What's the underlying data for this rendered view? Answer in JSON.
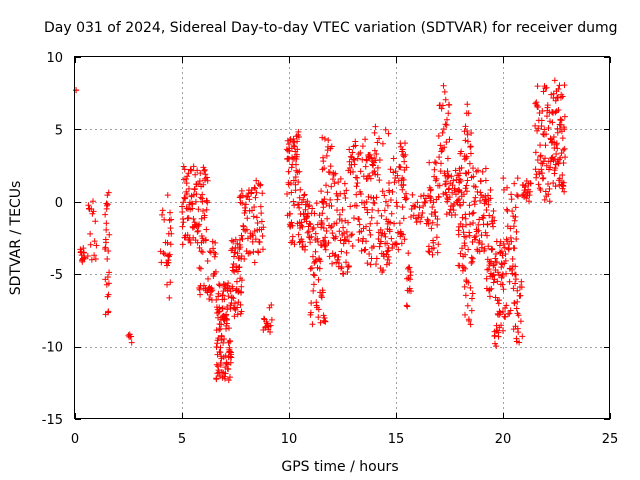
{
  "chart_data": {
    "type": "scatter",
    "title": "Day 031 of 2024, Sidereal Day-to-day VTEC variation (SDTVAR) for receiver dumg",
    "xlabel": "GPS time / hours",
    "ylabel": "SDTVAR / TECUs",
    "xlim": [
      0,
      25
    ],
    "ylim": [
      -15,
      10
    ],
    "xticks": [
      0,
      5,
      10,
      15,
      20,
      25
    ],
    "yticks": [
      -15,
      -10,
      -5,
      0,
      5,
      10
    ],
    "grid": true,
    "marker": "plus",
    "color": "#ff0000",
    "series": [
      {
        "name": "SDTVAR",
        "clusters": [
          {
            "x": [
              0.05,
              0.05
            ],
            "y": [
              7.6,
              7.8
            ],
            "n": 2
          },
          {
            "x": [
              0.25,
              0.45
            ],
            "y": [
              -4.2,
              -3.2
            ],
            "n": 14
          },
          {
            "x": [
              0.6,
              1.0
            ],
            "y": [
              -4.2,
              0.2
            ],
            "n": 16
          },
          {
            "x": [
              1.4,
              1.6
            ],
            "y": [
              -7.8,
              1.2
            ],
            "n": 26
          },
          {
            "x": [
              2.5,
              2.65
            ],
            "y": [
              -9.8,
              -9.0
            ],
            "n": 6
          },
          {
            "x": [
              4.0,
              4.3
            ],
            "y": [
              -4.5,
              -0.5
            ],
            "n": 10
          },
          {
            "x": [
              4.3,
              4.5
            ],
            "y": [
              -6.8,
              0.5
            ],
            "n": 18
          },
          {
            "x": [
              5.0,
              5.8
            ],
            "y": [
              -3.0,
              2.5
            ],
            "n": 70
          },
          {
            "x": [
              5.8,
              6.2
            ],
            "y": [
              -6.5,
              3.2
            ],
            "n": 45
          },
          {
            "x": [
              6.2,
              6.6
            ],
            "y": [
              -6.8,
              -2.0
            ],
            "n": 25
          },
          {
            "x": [
              6.6,
              7.3
            ],
            "y": [
              -12.5,
              -5.5
            ],
            "n": 110
          },
          {
            "x": [
              7.3,
              7.8
            ],
            "y": [
              -8.0,
              -2.5
            ],
            "n": 55
          },
          {
            "x": [
              7.7,
              8.4
            ],
            "y": [
              -4.0,
              1.0
            ],
            "n": 45
          },
          {
            "x": [
              8.4,
              8.8
            ],
            "y": [
              -4.5,
              1.5
            ],
            "n": 25
          },
          {
            "x": [
              8.8,
              9.2
            ],
            "y": [
              -9.0,
              -7.0
            ],
            "n": 15
          },
          {
            "x": [
              9.9,
              10.5
            ],
            "y": [
              -3.0,
              4.9
            ],
            "n": 70
          },
          {
            "x": [
              10.5,
              11.0
            ],
            "y": [
              -3.8,
              1.0
            ],
            "n": 40
          },
          {
            "x": [
              11.0,
              11.7
            ],
            "y": [
              -8.5,
              0.0
            ],
            "n": 60
          },
          {
            "x": [
              11.5,
              12.0
            ],
            "y": [
              -4.0,
              4.5
            ],
            "n": 40
          },
          {
            "x": [
              12.0,
              12.8
            ],
            "y": [
              -5.0,
              2.2
            ],
            "n": 60
          },
          {
            "x": [
              12.8,
              13.6
            ],
            "y": [
              -3.5,
              4.5
            ],
            "n": 55
          },
          {
            "x": [
              13.6,
              14.0
            ],
            "y": [
              -4.5,
              3.5
            ],
            "n": 40
          },
          {
            "x": [
              14.0,
              14.7
            ],
            "y": [
              -5.0,
              5.3
            ],
            "n": 55
          },
          {
            "x": [
              14.6,
              15.4
            ],
            "y": [
              -3.5,
              3.0
            ],
            "n": 45
          },
          {
            "x": [
              15.2,
              15.5
            ],
            "y": [
              0.0,
              4.2
            ],
            "n": 20
          },
          {
            "x": [
              15.5,
              15.7
            ],
            "y": [
              -7.5,
              -2.5
            ],
            "n": 15
          },
          {
            "x": [
              15.7,
              16.5
            ],
            "y": [
              -1.5,
              0.5
            ],
            "n": 25
          },
          {
            "x": [
              16.5,
              17.0
            ],
            "y": [
              -4.0,
              2.8
            ],
            "n": 40
          },
          {
            "x": [
              17.0,
              17.5
            ],
            "y": [
              0.0,
              8.5
            ],
            "n": 35
          },
          {
            "x": [
              17.3,
              18.0
            ],
            "y": [
              -1.0,
              2.5
            ],
            "n": 40
          },
          {
            "x": [
              17.9,
              18.3
            ],
            "y": [
              -5.0,
              3.5
            ],
            "n": 40
          },
          {
            "x": [
              18.2,
              18.6
            ],
            "y": [
              -8.5,
              7.0
            ],
            "n": 50
          },
          {
            "x": [
              18.6,
              19.2
            ],
            "y": [
              -3.5,
              2.5
            ],
            "n": 45
          },
          {
            "x": [
              19.2,
              19.6
            ],
            "y": [
              -7.0,
              1.5
            ],
            "n": 45
          },
          {
            "x": [
              19.6,
              20.0
            ],
            "y": [
              -10.3,
              -2.5
            ],
            "n": 45
          },
          {
            "x": [
              20.0,
              20.7
            ],
            "y": [
              -8.0,
              1.8
            ],
            "n": 60
          },
          {
            "x": [
              20.5,
              20.9
            ],
            "y": [
              -9.8,
              -5.0
            ],
            "n": 20
          },
          {
            "x": [
              20.9,
              21.3
            ],
            "y": [
              0.0,
              1.5
            ],
            "n": 20
          },
          {
            "x": [
              21.5,
              22.3
            ],
            "y": [
              0.0,
              8.0
            ],
            "n": 70
          },
          {
            "x": [
              22.3,
              22.9
            ],
            "y": [
              0.5,
              8.6
            ],
            "n": 70
          }
        ]
      }
    ]
  }
}
